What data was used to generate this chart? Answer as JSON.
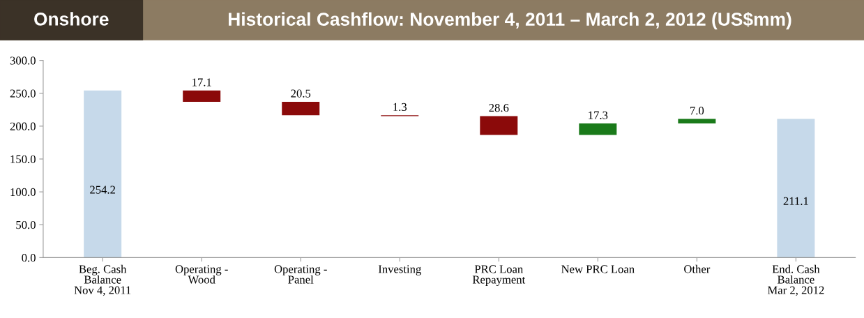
{
  "chart_data": {
    "type": "bar",
    "title": "Historical Cashflow: November 4, 2011 – March 2, 2012 (US$mm)",
    "annotations": [
      "Onshore"
    ],
    "categories": [
      "Beg. Cash\nBalance\nNov 4, 2011",
      "Operating -\nWood",
      "Operating -\nPanel",
      "Investing",
      "PRC Loan\nRepayment",
      "New PRC Loan",
      "Other",
      "End. Cash\nBalance\nMar 2, 2012"
    ],
    "values": [
      254.2,
      17.1,
      20.5,
      1.3,
      28.6,
      17.3,
      7.0,
      211.1
    ],
    "base": [
      0,
      237.1,
      216.6,
      215.3,
      186.7,
      186.7,
      204.0,
      0
    ],
    "colors": [
      "#c6d9ea",
      "#8b0a0a",
      "#8b0a0a",
      "#8b0a0a",
      "#8b0a0a",
      "#1a7a1a",
      "#1a7a1a",
      "#c6d9ea"
    ],
    "value_labels": [
      "254.2",
      "17.1",
      "20.5",
      "1.3",
      "28.6",
      "17.3",
      "7.0",
      "211.1"
    ],
    "ylim": [
      0,
      300
    ],
    "yticks": [
      {
        "value": 0,
        "label": "0.0"
      },
      {
        "value": 50,
        "label": "50.0"
      },
      {
        "value": 100,
        "label": "100.0"
      },
      {
        "value": 150,
        "label": "150.0"
      },
      {
        "value": 200,
        "label": "200.0"
      },
      {
        "value": 250,
        "label": "250.0"
      },
      {
        "value": 300,
        "label": "300.0"
      }
    ],
    "grid": false,
    "legend": false
  }
}
